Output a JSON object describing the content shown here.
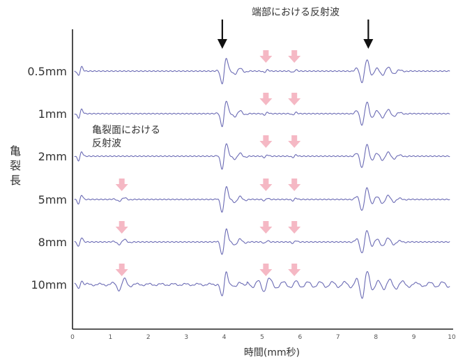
{
  "chart_data": {
    "type": "line",
    "title": "",
    "ylabel": "亀裂長",
    "xlabel": "時間(mm秒)",
    "xlim": [
      0,
      10
    ],
    "x_ticks": [
      0,
      1,
      2,
      3,
      4,
      5,
      6,
      7,
      8,
      9,
      10
    ],
    "grid": false,
    "rows": [
      {
        "label": "0.5mm",
        "crack_reflection_time": null
      },
      {
        "label": "1mm",
        "crack_reflection_time": null
      },
      {
        "label": "2mm",
        "crack_reflection_time": null
      },
      {
        "label": "5mm",
        "crack_reflection_time": 1.3
      },
      {
        "label": "8mm",
        "crack_reflection_time": 1.3
      },
      {
        "label": "10mm",
        "crack_reflection_time": 1.3
      }
    ],
    "waveform_events": {
      "initial_pulse_time": 0.2,
      "end_reflection_times": [
        4.0,
        7.8
      ],
      "minor_reflection_times": [
        5.1,
        5.85
      ]
    },
    "annotations": {
      "end_reflection": {
        "text": "端部における反射波",
        "arrow_times": [
          3.95,
          7.8
        ]
      },
      "crack_surface_reflection": {
        "text_line1": "亀裂面における",
        "text_line2": "反射波"
      }
    },
    "colors": {
      "waveform": "#6a6ab4",
      "black_arrow": "#111111",
      "pink_arrow": "#f5b8c4",
      "axis": "#222222"
    }
  }
}
